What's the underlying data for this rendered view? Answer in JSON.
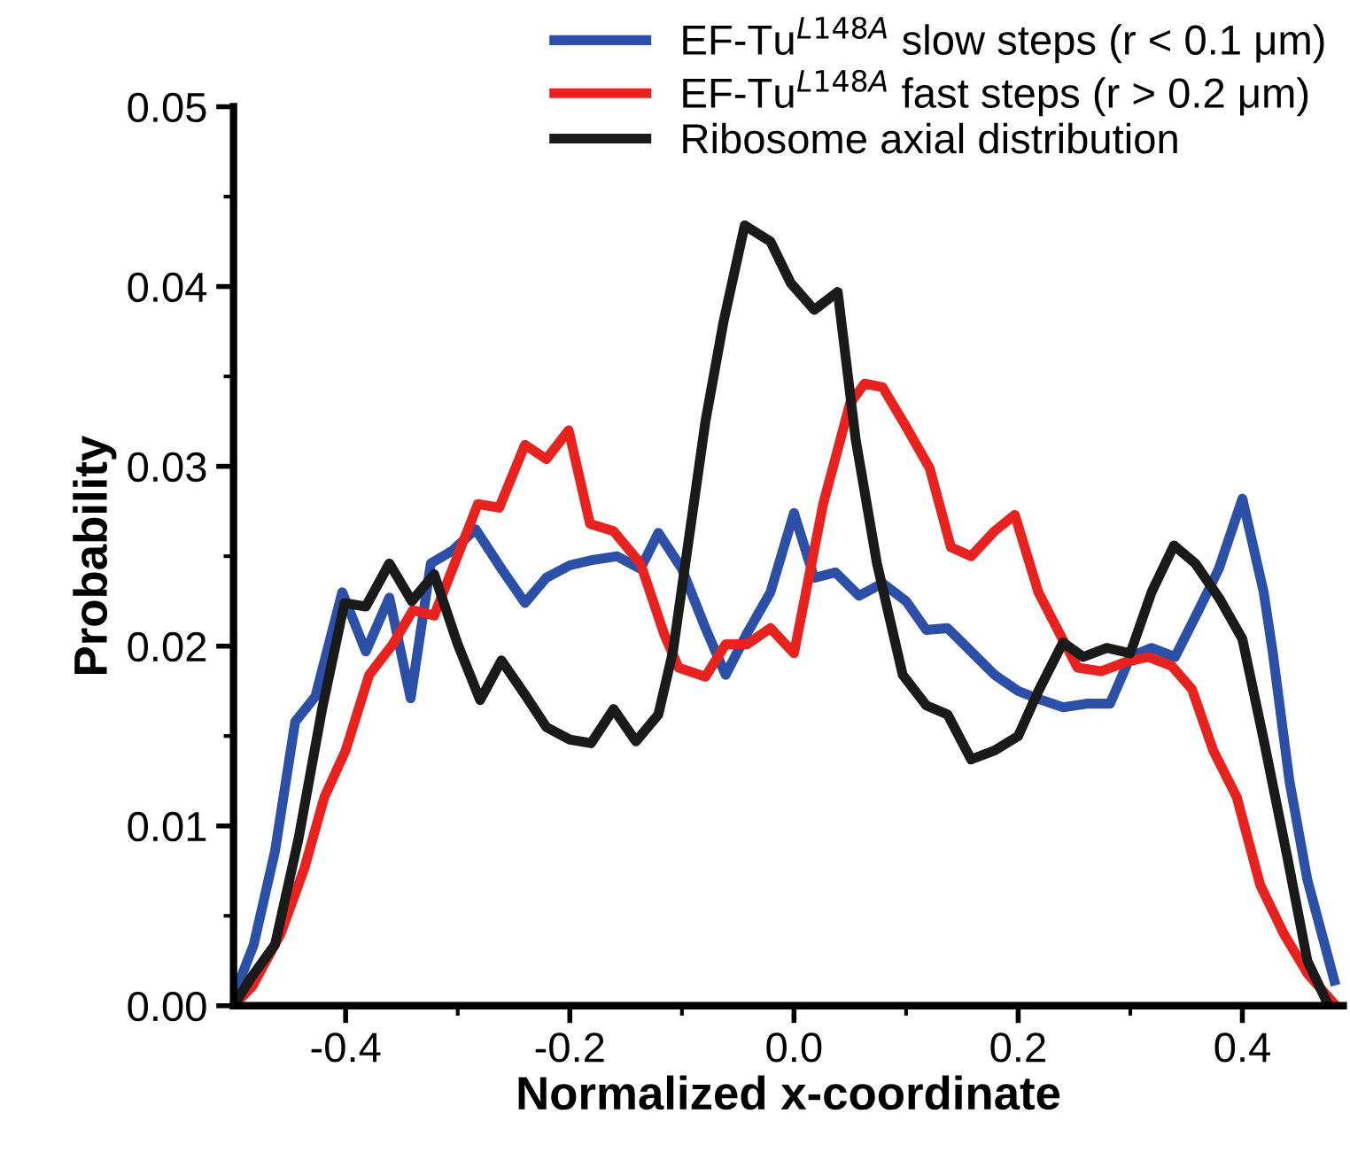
{
  "chart_data": {
    "type": "line",
    "xlabel": "Normalized x-coordinate",
    "ylabel": "Probability",
    "xlim": [
      -0.5,
      0.49
    ],
    "ylim": [
      0,
      0.05
    ],
    "xticks": [
      {
        "value": -0.4,
        "label": "-0.4"
      },
      {
        "value": -0.3,
        "label": null
      },
      {
        "value": -0.2,
        "label": "-0.2"
      },
      {
        "value": -0.1,
        "label": null
      },
      {
        "value": 0,
        "label": "0.0"
      },
      {
        "value": 0.1,
        "label": null
      },
      {
        "value": 0.2,
        "label": "0.2"
      },
      {
        "value": 0.3,
        "label": null
      },
      {
        "value": 0.4,
        "label": "0.4"
      }
    ],
    "yticks": [
      {
        "value": 0,
        "label": "0.00"
      },
      {
        "value": 0.005,
        "label": null
      },
      {
        "value": 0.01,
        "label": "0.01"
      },
      {
        "value": 0.015,
        "label": null
      },
      {
        "value": 0.02,
        "label": "0.02"
      },
      {
        "value": 0.025,
        "label": null
      },
      {
        "value": 0.03,
        "label": "0.03"
      },
      {
        "value": 0.035,
        "label": null
      },
      {
        "value": 0.04,
        "label": "0.04"
      },
      {
        "value": 0.045,
        "label": null
      },
      {
        "value": 0.05,
        "label": "0.05"
      }
    ],
    "grid": false,
    "legend": "top right",
    "marker": "none",
    "line_style": "solid",
    "series": [
      {
        "name": "EF-Tu$^{L148A}$ slow steps (r < 0.1 μm)",
        "color": "#2c4fa8",
        "x": [
          -0.5,
          -0.482,
          -0.463,
          -0.445,
          -0.427,
          -0.403,
          -0.382,
          -0.361,
          -0.342,
          -0.324,
          -0.305,
          -0.284,
          -0.261,
          -0.24,
          -0.221,
          -0.2,
          -0.179,
          -0.158,
          -0.137,
          -0.121,
          -0.1,
          -0.079,
          -0.061,
          -0.042,
          -0.021,
          0.0,
          0.018,
          0.037,
          0.058,
          0.079,
          0.1,
          0.118,
          0.137,
          0.158,
          0.179,
          0.2,
          0.221,
          0.24,
          0.261,
          0.282,
          0.3,
          0.319,
          0.34,
          0.361,
          0.379,
          0.4,
          0.419,
          0.427,
          0.442,
          0.458,
          0.482
        ],
        "values": [
          0.0005,
          0.0034,
          0.0086,
          0.0158,
          0.0172,
          0.023,
          0.0197,
          0.0227,
          0.0171,
          0.0246,
          0.0253,
          0.0265,
          0.0243,
          0.0224,
          0.0238,
          0.0245,
          0.0248,
          0.025,
          0.0243,
          0.0263,
          0.0243,
          0.021,
          0.0184,
          0.0207,
          0.023,
          0.0274,
          0.0238,
          0.0241,
          0.0228,
          0.0235,
          0.0225,
          0.0209,
          0.021,
          0.0197,
          0.0184,
          0.0175,
          0.017,
          0.0166,
          0.0168,
          0.0168,
          0.0194,
          0.0199,
          0.0194,
          0.022,
          0.0243,
          0.0282,
          0.023,
          0.0197,
          0.0125,
          0.007,
          0.0014
        ]
      },
      {
        "name": "EF-Tu$^{L148A}$ fast steps (r > 0.2 μm)",
        "color": "#e8231f",
        "x": [
          -0.5,
          -0.483,
          -0.458,
          -0.437,
          -0.419,
          -0.4,
          -0.379,
          -0.358,
          -0.34,
          -0.321,
          -0.282,
          -0.263,
          -0.24,
          -0.221,
          -0.201,
          -0.182,
          -0.161,
          -0.137,
          -0.116,
          -0.103,
          -0.079,
          -0.061,
          -0.042,
          -0.021,
          0.0,
          0.026,
          0.05,
          0.063,
          0.079,
          0.1,
          0.121,
          0.14,
          0.158,
          0.179,
          0.197,
          0.218,
          0.237,
          0.253,
          0.274,
          0.295,
          0.316,
          0.337,
          0.355,
          0.374,
          0.395,
          0.416,
          0.437,
          0.458,
          0.482
        ],
        "values": [
          0,
          0.0011,
          0.004,
          0.0076,
          0.0116,
          0.0142,
          0.0184,
          0.0201,
          0.022,
          0.0217,
          0.0279,
          0.0277,
          0.0312,
          0.0304,
          0.032,
          0.0268,
          0.0264,
          0.0246,
          0.0207,
          0.0188,
          0.0183,
          0.0201,
          0.0201,
          0.021,
          0.0196,
          0.0279,
          0.0335,
          0.0346,
          0.0344,
          0.0322,
          0.0299,
          0.0255,
          0.025,
          0.0264,
          0.0273,
          0.023,
          0.0207,
          0.0188,
          0.0186,
          0.0191,
          0.0194,
          0.0189,
          0.0176,
          0.0142,
          0.0116,
          0.0067,
          0.004,
          0.0018,
          0.0001
        ]
      },
      {
        "name": "Ribosome axial distribution",
        "color": "#1a1a1a",
        "x": [
          -0.5,
          -0.485,
          -0.463,
          -0.442,
          -0.421,
          -0.401,
          -0.382,
          -0.361,
          -0.341,
          -0.321,
          -0.3,
          -0.28,
          -0.261,
          -0.24,
          -0.221,
          -0.2,
          -0.181,
          -0.161,
          -0.141,
          -0.121,
          -0.108,
          -0.079,
          -0.063,
          -0.044,
          -0.021,
          -0.003,
          0.018,
          0.039,
          0.055,
          0.074,
          0.097,
          0.118,
          0.137,
          0.158,
          0.179,
          0.2,
          0.218,
          0.24,
          0.258,
          0.279,
          0.3,
          0.319,
          0.339,
          0.358,
          0.379,
          0.4,
          0.419,
          0.44,
          0.458,
          0.477
        ],
        "values": [
          0,
          0.0015,
          0.0034,
          0.0093,
          0.0165,
          0.0224,
          0.0222,
          0.0246,
          0.0225,
          0.024,
          0.0201,
          0.017,
          0.0192,
          0.0173,
          0.0155,
          0.0148,
          0.0146,
          0.0165,
          0.0147,
          0.0162,
          0.0197,
          0.0325,
          0.038,
          0.0434,
          0.0425,
          0.0402,
          0.0387,
          0.0397,
          0.0315,
          0.0246,
          0.0184,
          0.0167,
          0.0162,
          0.0137,
          0.0142,
          0.015,
          0.0175,
          0.0202,
          0.0194,
          0.0199,
          0.0196,
          0.023,
          0.0256,
          0.0246,
          0.0227,
          0.0204,
          0.0148,
          0.0083,
          0.0025,
          0
        ]
      }
    ]
  }
}
